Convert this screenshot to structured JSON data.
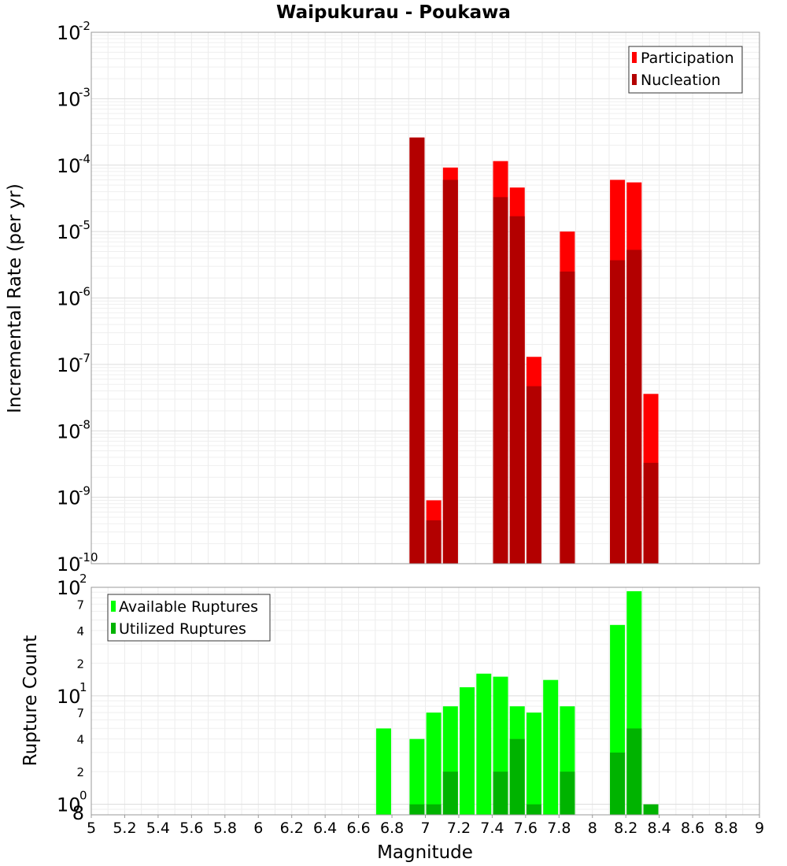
{
  "chart_data": [
    {
      "type": "bar",
      "title": "Waipukurau - Poukawa",
      "xlabel": "",
      "ylabel": "Incremental Rate (per yr)",
      "yscale": "log",
      "ylim": [
        1e-10,
        0.01
      ],
      "xlim": [
        5,
        9
      ],
      "y_major_ticks": [
        {
          "base": "10",
          "exp": "-10"
        },
        {
          "base": "10",
          "exp": "-9"
        },
        {
          "base": "10",
          "exp": "-8"
        },
        {
          "base": "10",
          "exp": "-7"
        },
        {
          "base": "10",
          "exp": "-6"
        },
        {
          "base": "10",
          "exp": "-5"
        },
        {
          "base": "10",
          "exp": "-4"
        },
        {
          "base": "10",
          "exp": "-3"
        },
        {
          "base": "10",
          "exp": "-2"
        }
      ],
      "legend_position": "top-right",
      "grid": true,
      "x": [
        6.95,
        7.05,
        7.15,
        7.45,
        7.55,
        7.65,
        7.85,
        8.15,
        8.25,
        8.35
      ],
      "series": [
        {
          "name": "Participation",
          "color": "#ff0000",
          "values": [
            0.00026,
            9e-10,
            9.2e-05,
            0.000115,
            4.6e-05,
            1.3e-07,
            1e-05,
            6e-05,
            5.5e-05,
            3.6e-08
          ]
        },
        {
          "name": "Nucleation",
          "color": "#b30000",
          "values": [
            0.00026,
            4.5e-10,
            6e-05,
            3.3e-05,
            1.7e-05,
            4.7e-08,
            2.5e-06,
            3.7e-06,
            5.3e-06,
            3.3e-09
          ]
        }
      ]
    },
    {
      "type": "bar",
      "title": "",
      "xlabel": "Magnitude",
      "ylabel": "Rupture Count",
      "yscale": "log",
      "ylim": [
        0.8,
        100
      ],
      "xlim": [
        5,
        9
      ],
      "y_major_ticks": [
        {
          "base": "10",
          "exp": "0"
        },
        {
          "base": "10",
          "exp": "1"
        },
        {
          "base": "10",
          "exp": "2"
        }
      ],
      "y_minor_ticks": [
        {
          "value": 0.8,
          "label": "8"
        },
        {
          "value": 2,
          "label": "2"
        },
        {
          "value": 4,
          "label": "4"
        },
        {
          "value": 7,
          "label": "7"
        },
        {
          "value": 20,
          "label": "2"
        },
        {
          "value": 40,
          "label": "4"
        },
        {
          "value": 70,
          "label": "7"
        }
      ],
      "x_ticks": [
        "5",
        "5.2",
        "5.4",
        "5.6",
        "5.8",
        "6",
        "6.2",
        "6.4",
        "6.6",
        "6.8",
        "7",
        "7.2",
        "7.4",
        "7.6",
        "7.8",
        "8",
        "8.2",
        "8.4",
        "8.6",
        "8.8",
        "9"
      ],
      "legend_position": "top-left",
      "grid": true,
      "x": [
        6.75,
        6.95,
        7.05,
        7.15,
        7.25,
        7.35,
        7.45,
        7.55,
        7.65,
        7.75,
        7.85,
        8.15,
        8.25,
        8.35
      ],
      "series": [
        {
          "name": "Available Ruptures",
          "color": "#00ff00",
          "values": [
            5,
            4,
            7,
            8,
            12,
            16,
            15,
            8,
            7,
            14,
            8,
            45,
            92,
            0
          ]
        },
        {
          "name": "Utilized Ruptures",
          "color": "#00b300",
          "values": [
            0,
            1,
            1,
            2,
            0,
            0,
            2,
            4,
            1,
            0,
            2,
            3,
            5,
            1
          ]
        }
      ]
    }
  ]
}
